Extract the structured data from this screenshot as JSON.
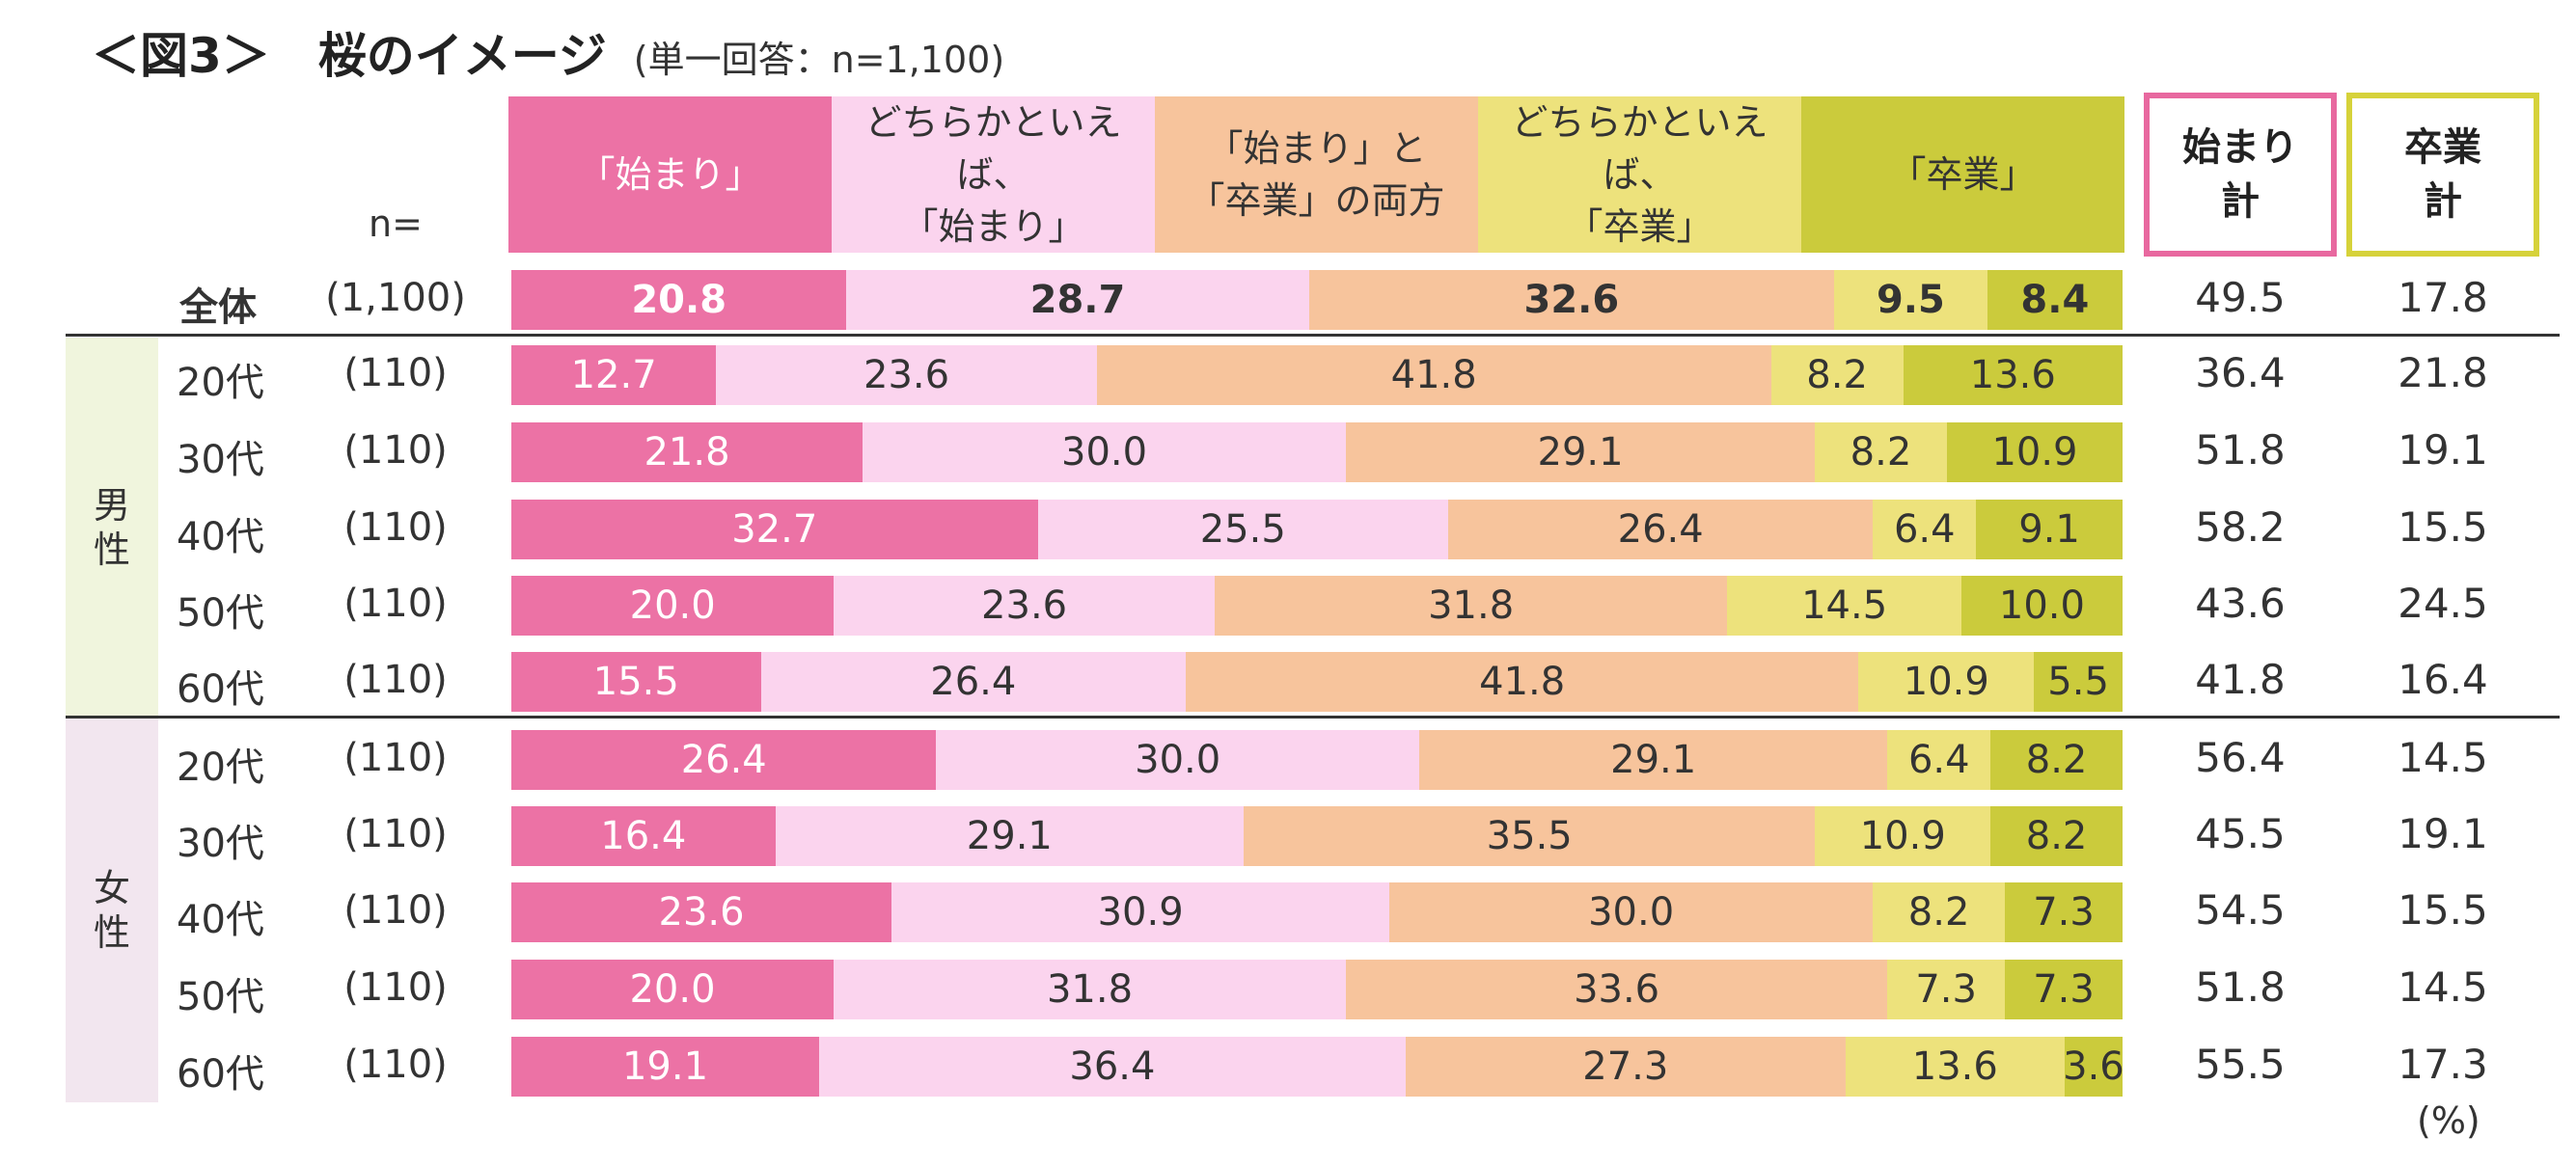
{
  "title": "＜図3＞　桜のイメージ",
  "subtitle": "(単一回答：n=1,100)",
  "unit": "(%)",
  "n_label": "n=",
  "headers": {
    "categories": [
      "「始まり」",
      "どちらかといえば、\n「始まり」",
      "「始まり」と\n「卒業」の両方",
      "どちらかといえば、\n「卒業」",
      "「卒業」"
    ],
    "total_hajimari": "始まり\n計",
    "total_sotsugyo": "卒業\n計"
  },
  "colors": {
    "categories": [
      "#ec72a5",
      "#fbd4ee",
      "#f7c49c",
      "#ede27c",
      "#cbcb3c"
    ],
    "total_hajimari_border": "#e8689f",
    "total_sotsugyo_border": "#d6d23a",
    "male_band": "#f0f5dd",
    "female_band": "#f2e6ef"
  },
  "groups": [
    {
      "name": "男\n性"
    },
    {
      "name": "女\n性"
    }
  ],
  "chart_data": {
    "type": "bar",
    "orientation": "horizontal-stacked-100",
    "series_names": [
      "「始まり」",
      "どちらかといえば、「始まり」",
      "「始まり」と「卒業」の両方",
      "どちらかといえば、「卒業」",
      "「卒業」"
    ],
    "rows": [
      {
        "label": "全体",
        "group": "",
        "n": "(1,100)",
        "values": [
          20.8,
          28.7,
          32.6,
          9.5,
          8.4
        ],
        "hajimari_total": "49.5",
        "sotsugyo_total": "17.8"
      },
      {
        "label": "20代",
        "group": "男性",
        "n": "(110)",
        "values": [
          12.7,
          23.6,
          41.8,
          8.2,
          13.6
        ],
        "hajimari_total": "36.4",
        "sotsugyo_total": "21.8"
      },
      {
        "label": "30代",
        "group": "男性",
        "n": "(110)",
        "values": [
          21.8,
          30.0,
          29.1,
          8.2,
          10.9
        ],
        "hajimari_total": "51.8",
        "sotsugyo_total": "19.1"
      },
      {
        "label": "40代",
        "group": "男性",
        "n": "(110)",
        "values": [
          32.7,
          25.5,
          26.4,
          6.4,
          9.1
        ],
        "hajimari_total": "58.2",
        "sotsugyo_total": "15.5"
      },
      {
        "label": "50代",
        "group": "男性",
        "n": "(110)",
        "values": [
          20.0,
          23.6,
          31.8,
          14.5,
          10.0
        ],
        "hajimari_total": "43.6",
        "sotsugyo_total": "24.5"
      },
      {
        "label": "60代",
        "group": "男性",
        "n": "(110)",
        "values": [
          15.5,
          26.4,
          41.8,
          10.9,
          5.5
        ],
        "hajimari_total": "41.8",
        "sotsugyo_total": "16.4"
      },
      {
        "label": "20代",
        "group": "女性",
        "n": "(110)",
        "values": [
          26.4,
          30.0,
          29.1,
          6.4,
          8.2
        ],
        "hajimari_total": "56.4",
        "sotsugyo_total": "14.5"
      },
      {
        "label": "30代",
        "group": "女性",
        "n": "(110)",
        "values": [
          16.4,
          29.1,
          35.5,
          10.9,
          8.2
        ],
        "hajimari_total": "45.5",
        "sotsugyo_total": "19.1"
      },
      {
        "label": "40代",
        "group": "女性",
        "n": "(110)",
        "values": [
          23.6,
          30.9,
          30.0,
          8.2,
          7.3
        ],
        "hajimari_total": "54.5",
        "sotsugyo_total": "15.5"
      },
      {
        "label": "50代",
        "group": "女性",
        "n": "(110)",
        "values": [
          20.0,
          31.8,
          33.6,
          7.3,
          7.3
        ],
        "hajimari_total": "51.8",
        "sotsugyo_total": "14.5"
      },
      {
        "label": "60代",
        "group": "女性",
        "n": "(110)",
        "values": [
          19.1,
          36.4,
          27.3,
          13.6,
          3.6
        ],
        "hajimari_total": "55.5",
        "sotsugyo_total": "17.3"
      }
    ]
  }
}
